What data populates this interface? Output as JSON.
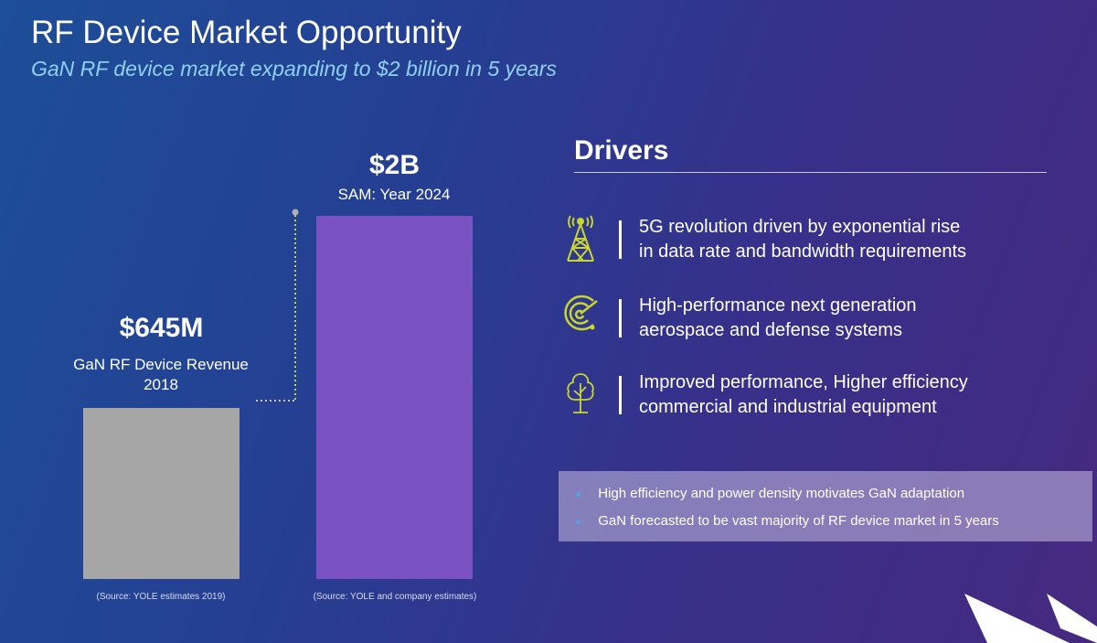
{
  "title": "RF Device Market Opportunity",
  "subtitle": "GaN RF device market expanding to $2 billion in 5 years",
  "chart_data": {
    "type": "bar",
    "categories": [
      "GaN RF Device Revenue 2018",
      "SAM: Year 2024"
    ],
    "values": [
      645,
      2000
    ],
    "units": "$M",
    "value_labels": [
      "$645M",
      "$2B"
    ],
    "category_labels": [
      "GaN RF Device Revenue 2018",
      "SAM: Year 2024"
    ],
    "sources": [
      "(Source: YOLE estimates 2019)",
      "(Source: YOLE and company estimates)"
    ],
    "colors": [
      "#a6a6a6",
      "#7b52c4"
    ],
    "ylim": [
      0,
      2000
    ]
  },
  "drivers": {
    "heading": "Drivers",
    "items": [
      {
        "icon": "cell-tower-icon",
        "lines": [
          "5G revolution driven by exponential rise",
          "in data rate and bandwidth requirements"
        ]
      },
      {
        "icon": "radar-icon",
        "lines": [
          "High-performance next generation",
          "aerospace and defense systems"
        ]
      },
      {
        "icon": "tree-icon",
        "lines": [
          "Improved performance, Higher efficiency",
          "commercial and industrial equipment"
        ]
      }
    ]
  },
  "bullets": [
    "High efficiency and power density motivates GaN adaptation",
    "GaN forecasted to be vast majority of RF device market in 5 years"
  ],
  "accent": "#c8d62e"
}
